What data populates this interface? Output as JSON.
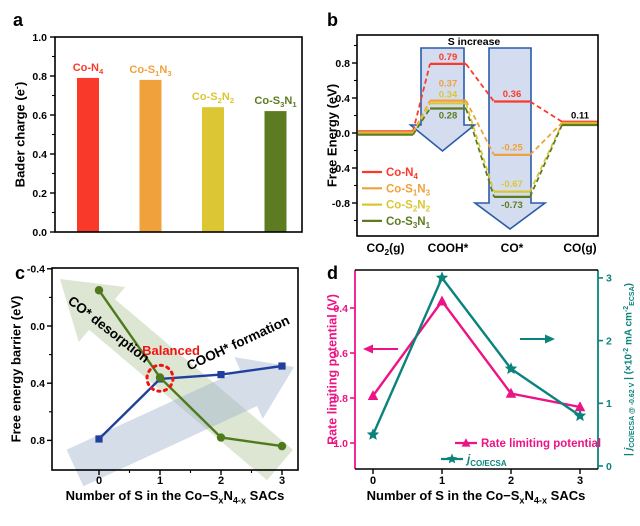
{
  "panel_letters": {
    "a": "a",
    "b": "b",
    "c": "c",
    "d": "d"
  },
  "colors": {
    "red": "#f93a2b",
    "orange": "#f1a13b",
    "yellow": "#dcc634",
    "olive": "#5d7c21",
    "green_line": "#4e7a1c",
    "navy": "#21409e",
    "magenta": "#ee1385",
    "teal": "#0b837d",
    "black": "#000000",
    "arrow_fill": "#cfdaee",
    "arrow_stroke": "#2a5caa",
    "sage_fill": "#a9bf90",
    "bluegray_fill": "#9fb3cc",
    "balanced_red": "#f01410"
  },
  "chart_data": [
    {
      "panel": "a",
      "type": "bar",
      "title": "",
      "xlabel": "",
      "ylabel": "Bader charge (e^-^)",
      "categories": [
        "Co-N_4_",
        "Co-S_1_N_3_",
        "Co-S_2_N_2_",
        "Co-S_3_N_1_"
      ],
      "values": [
        0.79,
        0.78,
        0.64,
        0.62
      ],
      "bar_colors": [
        "#f93a2b",
        "#f1a13b",
        "#dcc634",
        "#5d7c21"
      ],
      "ylim": [
        0.0,
        1.0
      ],
      "yticks": [
        0.0,
        0.2,
        0.4,
        0.6,
        0.8,
        1.0
      ],
      "ytick_labels": [
        "0.0",
        "0.2",
        "0.4",
        "0.6",
        "0.8",
        "1.0"
      ],
      "yticks_minor": [
        0.1,
        0.3,
        0.5,
        0.7,
        0.9
      ],
      "grid": false
    },
    {
      "panel": "b",
      "type": "energy-diagram",
      "title": "",
      "top_label": "S increase",
      "ylabel": "Free Energy (eV)",
      "categories": [
        "CO_2_(g)",
        "COOH*",
        "CO*",
        "CO(g)"
      ],
      "series": [
        {
          "name": "Co-N_4_",
          "color": "#f93a2b",
          "values": [
            0.0,
            0.79,
            0.36,
            0.11
          ]
        },
        {
          "name": "Co-S_1_N_3_",
          "color": "#f1a13b",
          "values": [
            0.0,
            0.37,
            -0.25,
            0.11
          ]
        },
        {
          "name": "Co-S_2_N_2_",
          "color": "#dcc634",
          "values": [
            0.0,
            0.34,
            -0.67,
            0.11
          ]
        },
        {
          "name": "Co-S_3_N_1_",
          "color": "#5d7c21",
          "values": [
            0.0,
            0.28,
            -0.73,
            0.11
          ]
        }
      ],
      "shared_final_value": 0.11,
      "ylim": [
        -1.2,
        1.12
      ],
      "yticks": [
        -0.8,
        -0.4,
        0.0,
        0.4,
        0.8
      ],
      "ytick_labels": [
        "-0.8",
        "-0.4",
        "0.0",
        "0.4",
        "0.8"
      ],
      "yticks_minor": [
        -1.0,
        -0.6,
        -0.2,
        0.2,
        0.6,
        1.0
      ],
      "legend_position": "lower-left",
      "grid": false
    },
    {
      "panel": "c",
      "type": "line",
      "title": "",
      "xlabel": "Number of S in the Co−S_x_N_4-x_ SACs",
      "ylabel": "Free energy barrier (eV)",
      "x": [
        0,
        1,
        2,
        3
      ],
      "xtick_labels": [
        "0",
        "1",
        "2",
        "3"
      ],
      "series": [
        {
          "name": "COOH* formation",
          "color": "#21409e",
          "marker": "square",
          "values": [
            0.79,
            0.37,
            0.34,
            0.28
          ]
        },
        {
          "name": "CO* desorption",
          "color": "#4e7a1c",
          "marker": "circle",
          "values": [
            -0.25,
            0.36,
            0.78,
            0.84
          ]
        }
      ],
      "y_inverted": true,
      "ylim": [
        -0.4,
        1.0
      ],
      "yticks": [
        -0.4,
        0.0,
        0.4,
        0.8
      ],
      "ytick_labels": [
        "-0.4",
        "0.0",
        "0.4",
        "0.8"
      ],
      "yticks_minor": [
        -0.2,
        0.2,
        0.6
      ],
      "xticks_minor": [
        0.5,
        1.5,
        2.5
      ],
      "balanced_label": "Balanced",
      "balanced_point": {
        "x": 1,
        "y": 0.365
      },
      "grid": false
    },
    {
      "panel": "d",
      "type": "dual-line",
      "title": "",
      "xlabel": "Number of S in the Co−S_x_N_4-x_ SACs",
      "ylabel_left": "Rate limiting potential (V)",
      "ylabel_right": "| ~j~_CO/ECSA @ -0.62 V_ |  (×10^-2^ mA cm^-2^_ECSA_)",
      "x": [
        0,
        1,
        2,
        3
      ],
      "xtick_labels": [
        "0",
        "1",
        "2",
        "3"
      ],
      "series": [
        {
          "name": "Rate limiting potential",
          "axis": "left",
          "color": "#ee1385",
          "marker": "triangle",
          "values": [
            0.79,
            0.37,
            0.78,
            0.84
          ]
        },
        {
          "name": "~j~_CO/ECSA_",
          "axis": "right",
          "color": "#0b837d",
          "marker": "star",
          "values": [
            0.5,
            3.0,
            1.55,
            0.8
          ]
        }
      ],
      "left_inverted": true,
      "ylim_left": [
        0.3,
        1.12
      ],
      "yticks_left": [
        0.4,
        0.6,
        0.8,
        1.0
      ],
      "ytick_labels_left": [
        "0.4",
        "0.6",
        "0.8",
        "1.0"
      ],
      "ylim_right": [
        0,
        3.2
      ],
      "yticks_right": [
        0,
        1,
        2,
        3
      ],
      "ytick_labels_right": [
        "0",
        "1",
        "2",
        "3"
      ],
      "legend_position": "lower-right",
      "grid": false
    }
  ]
}
